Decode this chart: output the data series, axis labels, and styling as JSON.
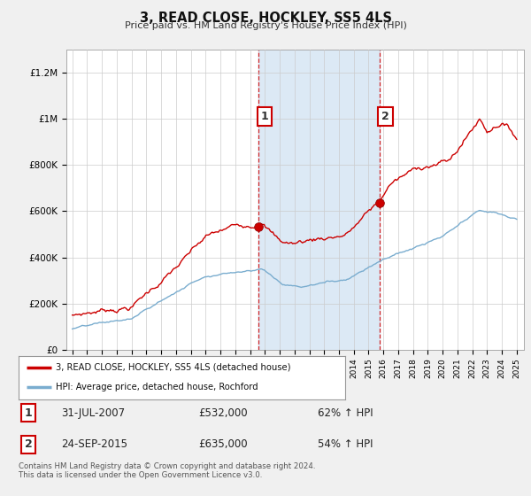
{
  "title": "3, READ CLOSE, HOCKLEY, SS5 4LS",
  "subtitle": "Price paid vs. HM Land Registry's House Price Index (HPI)",
  "ylabel_ticks": [
    "£0",
    "£200K",
    "£400K",
    "£600K",
    "£800K",
    "£1M",
    "£1.2M"
  ],
  "ytick_values": [
    0,
    200000,
    400000,
    600000,
    800000,
    1000000,
    1200000
  ],
  "ylim": [
    0,
    1300000
  ],
  "xlim_start": 1994.6,
  "xlim_end": 2025.5,
  "red_line_color": "#cc0000",
  "blue_line_color": "#7aadcf",
  "shaded_color": "#dce9f5",
  "marker1_x": 2007.58,
  "marker1_y": 532000,
  "marker2_x": 2015.73,
  "marker2_y": 635000,
  "legend_label_red": "3, READ CLOSE, HOCKLEY, SS5 4LS (detached house)",
  "legend_label_blue": "HPI: Average price, detached house, Rochford",
  "table_rows": [
    {
      "num": "1",
      "date": "31-JUL-2007",
      "price": "£532,000",
      "hpi": "62% ↑ HPI"
    },
    {
      "num": "2",
      "date": "24-SEP-2015",
      "price": "£635,000",
      "hpi": "54% ↑ HPI"
    }
  ],
  "footer": "Contains HM Land Registry data © Crown copyright and database right 2024.\nThis data is licensed under the Open Government Licence v3.0.",
  "background_color": "#f0f0f0",
  "plot_bg_color": "#ffffff",
  "grid_color": "#cccccc"
}
